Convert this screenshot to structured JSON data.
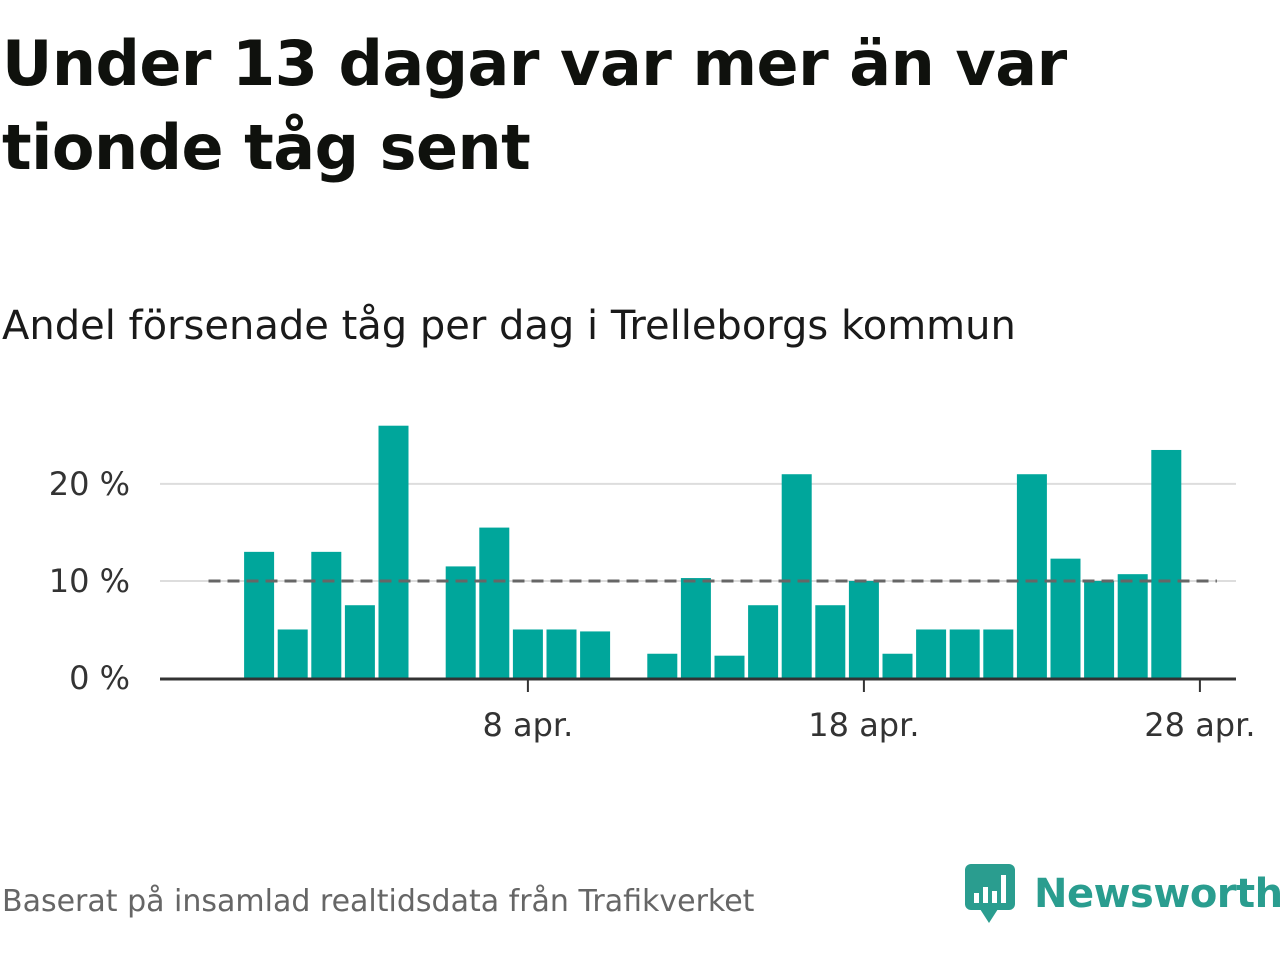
{
  "header": {
    "title": "Under 13 dagar var mer än var tionde tåg sent",
    "subtitle": "Andel försenade tåg per dag i Trelleborgs kommun"
  },
  "footer": {
    "source": "Baserat på insamlad realtidsdata från Trafikverket",
    "brand": "Newsworthy"
  },
  "colors": {
    "bar": "#00a69b",
    "reference_line": "#666666",
    "grid": "#dddddd",
    "axis": "#333333",
    "brand": "#2a9d8f"
  },
  "chart_data": {
    "type": "bar",
    "title": "Under 13 dagar var mer än var tionde tåg sent",
    "subtitle": "Andel försenade tåg per dag i Trelleborgs kommun",
    "x": [
      "2024-03-30",
      "2024-03-31",
      "2024-04-01",
      "2024-04-02",
      "2024-04-03",
      "2024-04-04",
      "2024-04-05",
      "2024-04-06",
      "2024-04-07",
      "2024-04-08",
      "2024-04-09",
      "2024-04-10",
      "2024-04-11",
      "2024-04-12",
      "2024-04-13",
      "2024-04-14",
      "2024-04-15",
      "2024-04-16",
      "2024-04-17",
      "2024-04-18",
      "2024-04-19",
      "2024-04-20",
      "2024-04-21",
      "2024-04-22",
      "2024-04-23",
      "2024-04-24",
      "2024-04-25",
      "2024-04-26",
      "2024-04-27",
      "2024-04-28",
      "2024-04-29",
      "2024-04-30"
    ],
    "values": [
      null,
      13,
      5,
      13,
      7.5,
      26,
      null,
      11.5,
      15.5,
      5,
      5,
      4.8,
      null,
      2.5,
      10.3,
      2.3,
      7.5,
      21,
      7.5,
      10,
      2.5,
      5,
      5,
      5,
      21,
      12.3,
      10,
      10.7,
      23.5,
      null,
      null,
      null
    ],
    "x_tick_labels": [
      "8 apr.",
      "18 apr.",
      "28 apr."
    ],
    "x_tick_dates": [
      "2024-04-08",
      "2024-04-18",
      "2024-04-28"
    ],
    "y_ticks": [
      0,
      10,
      20
    ],
    "y_tick_labels": [
      "0 %",
      "10 %",
      "20 %"
    ],
    "ylim": [
      0,
      27
    ],
    "reference_line": {
      "value": 10,
      "style": "dashed"
    },
    "grid": true,
    "xlabel": "",
    "ylabel": ""
  }
}
